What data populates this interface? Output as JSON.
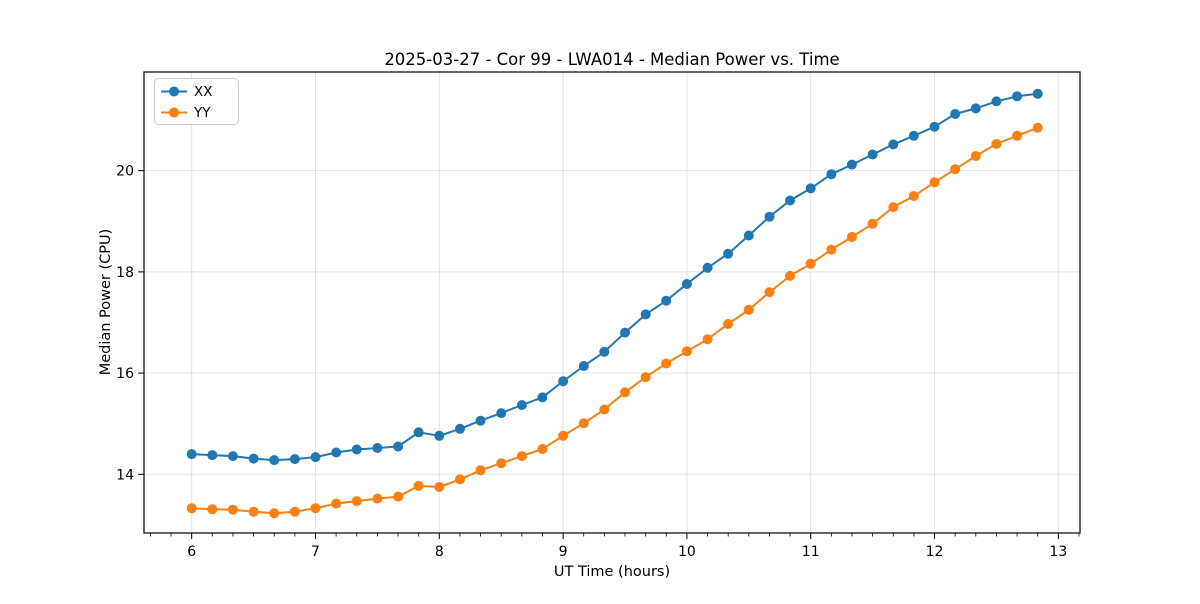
{
  "chart_data": {
    "type": "line",
    "title": "2025-03-27 - Cor 99 - LWA014 - Median Power vs. Time",
    "xlabel": "UT Time (hours)",
    "ylabel": "Median Power (CPU)",
    "xlim": [
      5.615,
      13.175
    ],
    "ylim": [
      12.84,
      21.95
    ],
    "x_ticks": [
      6,
      7,
      8,
      9,
      10,
      11,
      12,
      13
    ],
    "y_ticks": [
      14,
      16,
      18,
      20
    ],
    "x_minor_tick_step": 0.166667,
    "grid": true,
    "legend_position": "upper left",
    "x": [
      6.0,
      6.167,
      6.333,
      6.5,
      6.667,
      6.833,
      7.0,
      7.167,
      7.333,
      7.5,
      7.667,
      7.833,
      8.0,
      8.167,
      8.333,
      8.5,
      8.667,
      8.833,
      9.0,
      9.167,
      9.333,
      9.5,
      9.667,
      9.833,
      10.0,
      10.167,
      10.333,
      10.5,
      10.667,
      10.833,
      11.0,
      11.167,
      11.333,
      11.5,
      11.667,
      11.833,
      12.0,
      12.167,
      12.333,
      12.5,
      12.667,
      12.833
    ],
    "series": [
      {
        "name": "XX",
        "color": "#1f77b4",
        "values": [
          14.4,
          14.38,
          14.36,
          14.31,
          14.28,
          14.3,
          14.34,
          14.43,
          14.49,
          14.52,
          14.55,
          14.83,
          14.76,
          14.9,
          15.06,
          15.21,
          15.37,
          15.52,
          15.84,
          16.14,
          16.42,
          16.8,
          17.16,
          17.43,
          17.76,
          18.08,
          18.36,
          18.72,
          19.09,
          19.41,
          19.65,
          19.93,
          20.12,
          20.32,
          20.52,
          20.69,
          20.87,
          21.12,
          21.23,
          21.37,
          21.47,
          21.52
        ]
      },
      {
        "name": "YY",
        "color": "#ff7f0e",
        "values": [
          13.33,
          13.31,
          13.3,
          13.26,
          13.23,
          13.26,
          13.33,
          13.42,
          13.47,
          13.52,
          13.56,
          13.77,
          13.75,
          13.9,
          14.08,
          14.22,
          14.36,
          14.5,
          14.76,
          15.01,
          15.28,
          15.62,
          15.92,
          16.19,
          16.43,
          16.67,
          16.97,
          17.25,
          17.6,
          17.92,
          18.16,
          18.44,
          18.69,
          18.95,
          19.28,
          19.5,
          19.77,
          20.03,
          20.29,
          20.53,
          20.69,
          20.85
        ]
      }
    ],
    "style": {
      "grid_color": "#e3e3e3",
      "spine_color": "#000000",
      "background": "#ffffff",
      "legend_border": "#cccccc",
      "marker_radius": 5,
      "line_width": 2
    }
  }
}
